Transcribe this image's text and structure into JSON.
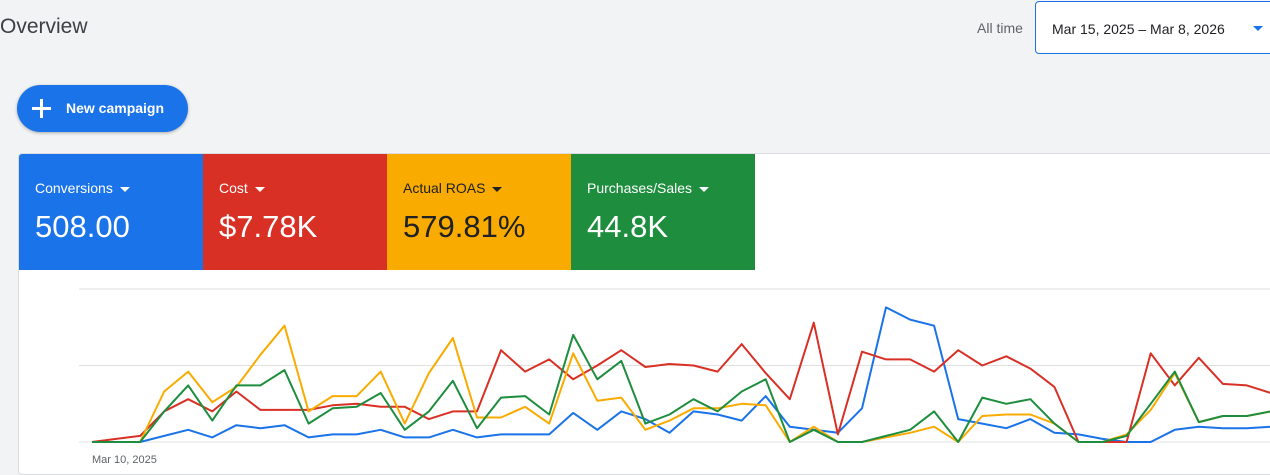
{
  "header": {
    "title": "Overview",
    "range_label": "All time",
    "date_range": "Mar 15, 2025 – Mar 8, 2026"
  },
  "actions": {
    "new_campaign": "New campaign"
  },
  "metrics": [
    {
      "label": "Conversions",
      "value": "508.00",
      "color": "#1a73e8"
    },
    {
      "label": "Cost",
      "value": "$7.78K",
      "color": "#d93025"
    },
    {
      "label": "Actual ROAS",
      "value": "579.81%",
      "color": "#f9ab00"
    },
    {
      "label": "Purchases/Sales",
      "value": "44.8K",
      "color": "#1e8e3e"
    }
  ],
  "chart_data": {
    "type": "line",
    "x_start_label": "Mar 10, 2025",
    "grid": true,
    "ylim": [
      0,
      100
    ],
    "series": [
      {
        "color": "#1a73e8",
        "values": [
          0,
          0,
          0,
          4,
          8,
          3,
          11,
          9,
          11,
          3,
          5,
          5,
          8,
          3,
          3,
          8,
          3,
          5,
          5,
          5,
          19,
          8,
          20,
          15,
          6,
          20,
          18,
          14,
          30,
          10,
          8,
          6,
          22,
          88,
          80,
          76,
          15,
          12,
          9,
          15,
          6,
          5,
          2,
          0,
          0,
          8,
          10,
          9,
          9,
          10
        ]
      },
      {
        "color": "#d93025",
        "values": [
          0,
          2,
          4,
          20,
          28,
          20,
          33,
          21,
          21,
          21,
          24,
          25,
          23,
          23,
          15,
          20,
          20,
          60,
          46,
          54,
          41,
          50,
          60,
          49,
          51,
          50,
          46,
          64,
          45,
          28,
          78,
          5,
          59,
          54,
          54,
          46,
          60,
          50,
          56,
          48,
          36,
          0,
          0,
          0,
          58,
          37,
          55,
          38,
          37,
          32
        ]
      },
      {
        "color": "#f9ab00",
        "values": [
          0,
          0,
          0,
          33,
          46,
          26,
          36,
          57,
          76,
          20,
          30,
          30,
          46,
          12,
          45,
          68,
          16,
          16,
          23,
          12,
          58,
          27,
          29,
          8,
          14,
          22,
          22,
          25,
          24,
          0,
          10,
          0,
          0,
          3,
          6,
          10,
          0,
          17,
          18,
          18,
          12,
          0,
          0,
          5,
          21,
          45,
          13,
          17,
          17,
          20
        ]
      },
      {
        "color": "#1e8e3e",
        "values": [
          0,
          0,
          0,
          20,
          37,
          14,
          37,
          37,
          47,
          12,
          22,
          23,
          32,
          8,
          20,
          40,
          9,
          29,
          30,
          18,
          70,
          41,
          53,
          12,
          18,
          28,
          20,
          33,
          41,
          0,
          8,
          0,
          0,
          4,
          8,
          20,
          0,
          29,
          25,
          28,
          12,
          0,
          0,
          4,
          25,
          46,
          13,
          17,
          17,
          20
        ]
      }
    ]
  }
}
